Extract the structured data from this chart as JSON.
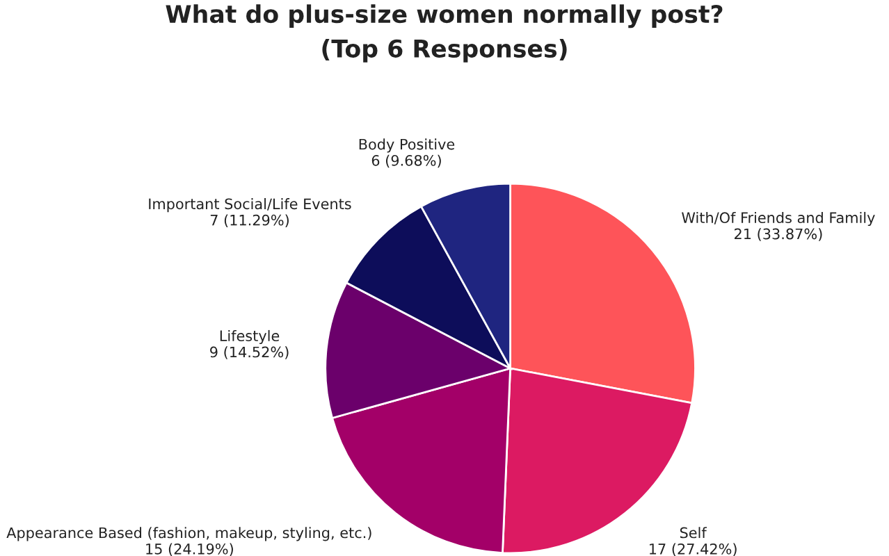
{
  "chart_data": {
    "type": "pie",
    "title": "What do plus-size women normally post?\n(Top 6 Responses)",
    "categories": [
      "With/Of Friends and Family",
      "Self",
      "Appearance Based (fashion, makeup, styling, etc.)",
      "Lifestyle",
      "Important Social/Life Events",
      "Body Positive"
    ],
    "values": [
      21,
      17,
      15,
      9,
      7,
      6
    ],
    "value_labels": [
      "21 (33.87%)",
      "17 (27.42%)",
      "15 (24.19%)",
      "9 (14.52%)",
      "7 (11.29%)",
      "6 (9.68%)"
    ],
    "colors": [
      "#fe5459",
      "#dc1a62",
      "#a30068",
      "#6b006b",
      "#0d0d5a",
      "#1f2580"
    ],
    "legend": false
  }
}
